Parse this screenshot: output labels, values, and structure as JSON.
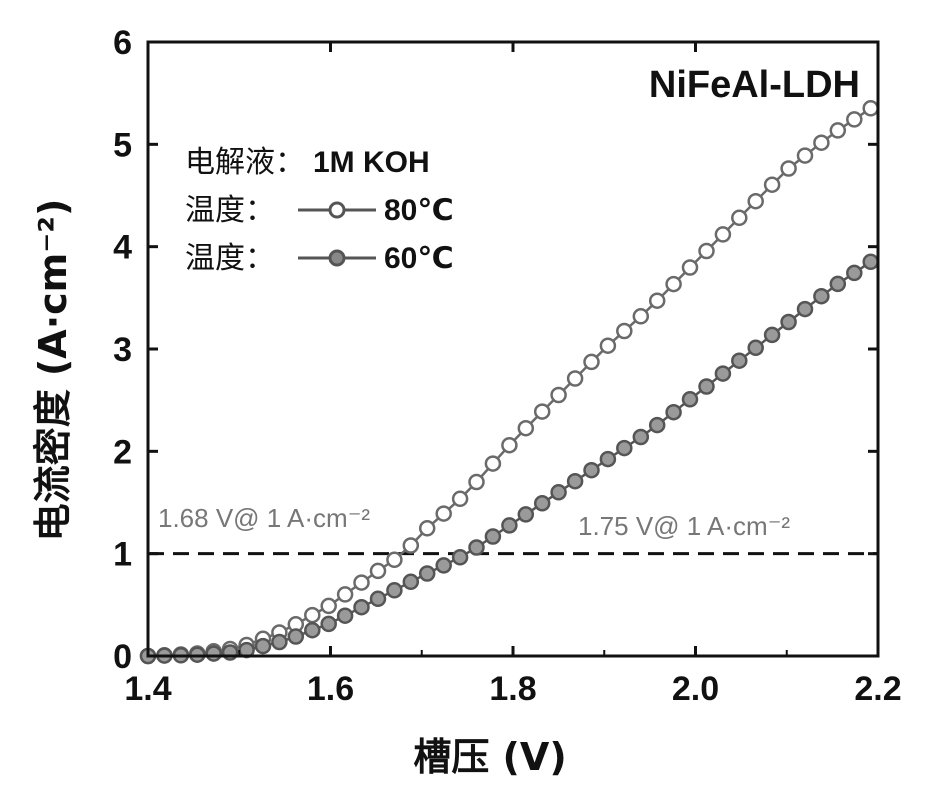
{
  "chart_data": {
    "type": "line",
    "title": "NiFeAl-LDH",
    "xlabel": "槽压 (V)",
    "ylabel": "电流密度 (A·cm⁻²)",
    "xlim": [
      1.4,
      2.2
    ],
    "ylim": [
      0,
      6
    ],
    "xticks": [
      "1.4",
      "1.6",
      "1.8",
      "2.0",
      "2.2"
    ],
    "yticks": [
      "0",
      "1",
      "2",
      "3",
      "4",
      "5",
      "6"
    ],
    "electrolyte_label": "电解液：",
    "electrolyte_value": "1M KOH",
    "reference_line_y": 1,
    "series": [
      {
        "name": "温度：80℃",
        "legend_prefix": "温度：",
        "legend_value": "80℃",
        "marker": "open-circle",
        "x": [
          1.4,
          1.45,
          1.5,
          1.55,
          1.6,
          1.65,
          1.68,
          1.7,
          1.75,
          1.8,
          1.85,
          1.9,
          1.95,
          2.0,
          2.05,
          2.1,
          2.15,
          2.2
        ],
        "y": [
          0.0,
          0.02,
          0.08,
          0.25,
          0.5,
          0.82,
          1.0,
          1.2,
          1.6,
          2.1,
          2.55,
          3.0,
          3.4,
          3.85,
          4.3,
          4.75,
          5.1,
          5.4
        ]
      },
      {
        "name": "温度：60℃",
        "legend_prefix": "温度：",
        "legend_value": "60℃",
        "marker": "filled-circle",
        "x": [
          1.4,
          1.45,
          1.5,
          1.55,
          1.6,
          1.65,
          1.7,
          1.75,
          1.8,
          1.85,
          1.9,
          1.95,
          2.0,
          2.05,
          2.1,
          2.15,
          2.2
        ],
        "y": [
          0.0,
          0.01,
          0.04,
          0.15,
          0.32,
          0.55,
          0.78,
          1.0,
          1.3,
          1.6,
          1.9,
          2.2,
          2.55,
          2.9,
          3.25,
          3.6,
          3.9
        ]
      }
    ],
    "annotations": [
      "1.68 V@ 1 A·cm⁻²",
      "1.75 V@ 1 A·cm⁻²"
    ]
  }
}
